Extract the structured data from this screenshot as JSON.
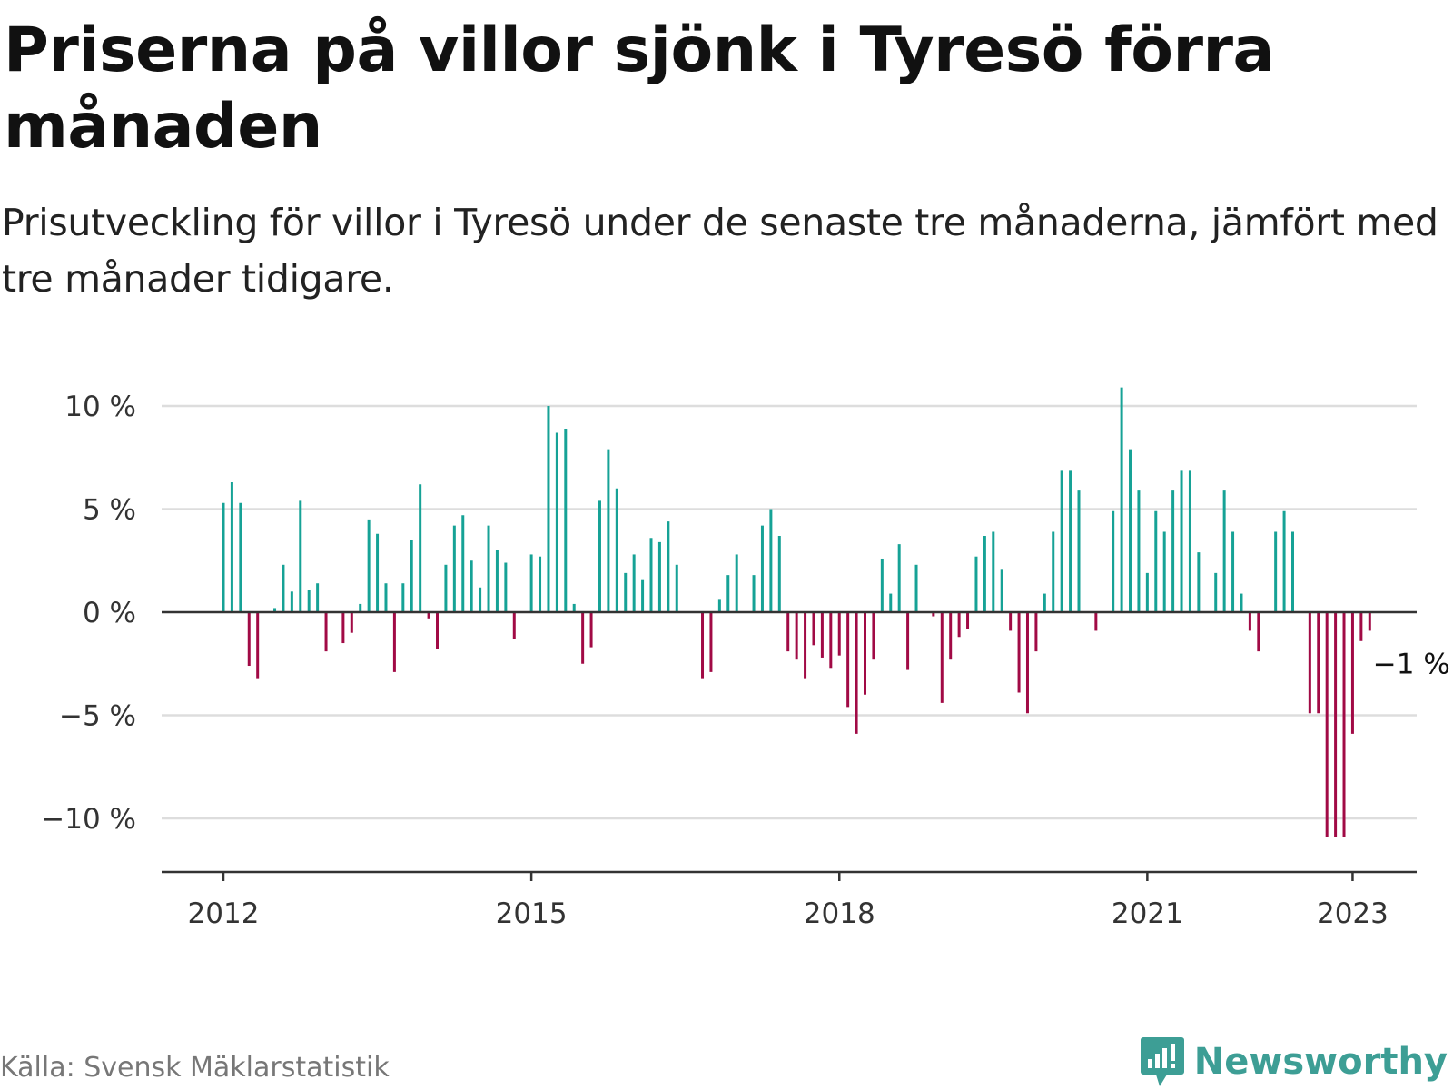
{
  "title": "Priserna på villor sjönk i Tyresö förra månaden",
  "subtitle": "Prisutveckling för villor i Tyresö under de senaste tre månaderna, jämfört med tre månader tidigare.",
  "source": "Källa: Svensk Mäklarstatistik",
  "brand": "Newsworthy",
  "colors": {
    "positive": "#16a296",
    "negative": "#a10a45",
    "grid": "#dddddd",
    "axis": "#333333",
    "brand": "#3d9e95"
  },
  "chart_data": {
    "type": "bar",
    "x_start": "2012-01",
    "unit": "%",
    "ylim": [
      -12.5,
      10
    ],
    "yticks": [
      {
        "value": 10,
        "label": "10 %"
      },
      {
        "value": 5,
        "label": "5 %"
      },
      {
        "value": 0,
        "label": "0 %"
      },
      {
        "value": -5,
        "label": "−5 %"
      },
      {
        "value": -10,
        "label": "−10 %"
      }
    ],
    "xticks": [
      {
        "date": "2012-01",
        "label": "2012"
      },
      {
        "date": "2015-01",
        "label": "2015"
      },
      {
        "date": "2018-01",
        "label": "2018"
      },
      {
        "date": "2021-01",
        "label": "2021"
      },
      {
        "date": "2023-01",
        "label": "2023"
      }
    ],
    "grid": true,
    "values": [
      5.3,
      6.3,
      5.3,
      -2.6,
      -3.2,
      null,
      0.2,
      2.3,
      1.0,
      5.4,
      1.1,
      1.4,
      -1.9,
      null,
      -1.5,
      -1.0,
      0.4,
      4.5,
      3.8,
      1.4,
      -2.9,
      1.4,
      3.5,
      6.2,
      -0.3,
      -1.8,
      2.3,
      4.2,
      4.7,
      2.5,
      1.2,
      4.2,
      3.0,
      2.4,
      -1.3,
      null,
      2.8,
      2.7,
      10.0,
      8.7,
      8.9,
      0.4,
      -2.5,
      -1.7,
      5.4,
      7.9,
      6.0,
      1.9,
      2.8,
      1.6,
      3.6,
      3.4,
      4.4,
      2.3,
      null,
      null,
      -3.2,
      -2.9,
      0.6,
      1.8,
      2.8,
      null,
      1.8,
      4.2,
      5.0,
      3.7,
      -1.9,
      -2.3,
      -3.2,
      -1.6,
      -2.2,
      -2.7,
      -2.1,
      -4.6,
      -5.9,
      -4.0,
      -2.3,
      2.6,
      0.9,
      3.3,
      -2.8,
      2.3,
      null,
      -0.2,
      -4.4,
      -2.3,
      -1.2,
      -0.8,
      2.7,
      3.7,
      3.9,
      2.1,
      -0.9,
      -3.9,
      -4.9,
      -1.9,
      0.9,
      3.9,
      6.9,
      6.9,
      5.9,
      null,
      -0.9,
      null,
      4.9,
      10.9,
      7.9,
      5.9,
      1.9,
      4.9,
      3.9,
      5.9,
      6.9,
      6.9,
      2.9,
      null,
      1.9,
      5.9,
      3.9,
      0.9,
      -0.9,
      -1.9,
      null,
      3.9,
      4.9,
      3.9,
      null,
      -4.9,
      -4.9,
      -10.9,
      -10.9,
      -10.9,
      -5.9,
      -1.4,
      -0.9
    ],
    "annotations": [
      {
        "index": 134,
        "text": "−1 %"
      }
    ]
  }
}
